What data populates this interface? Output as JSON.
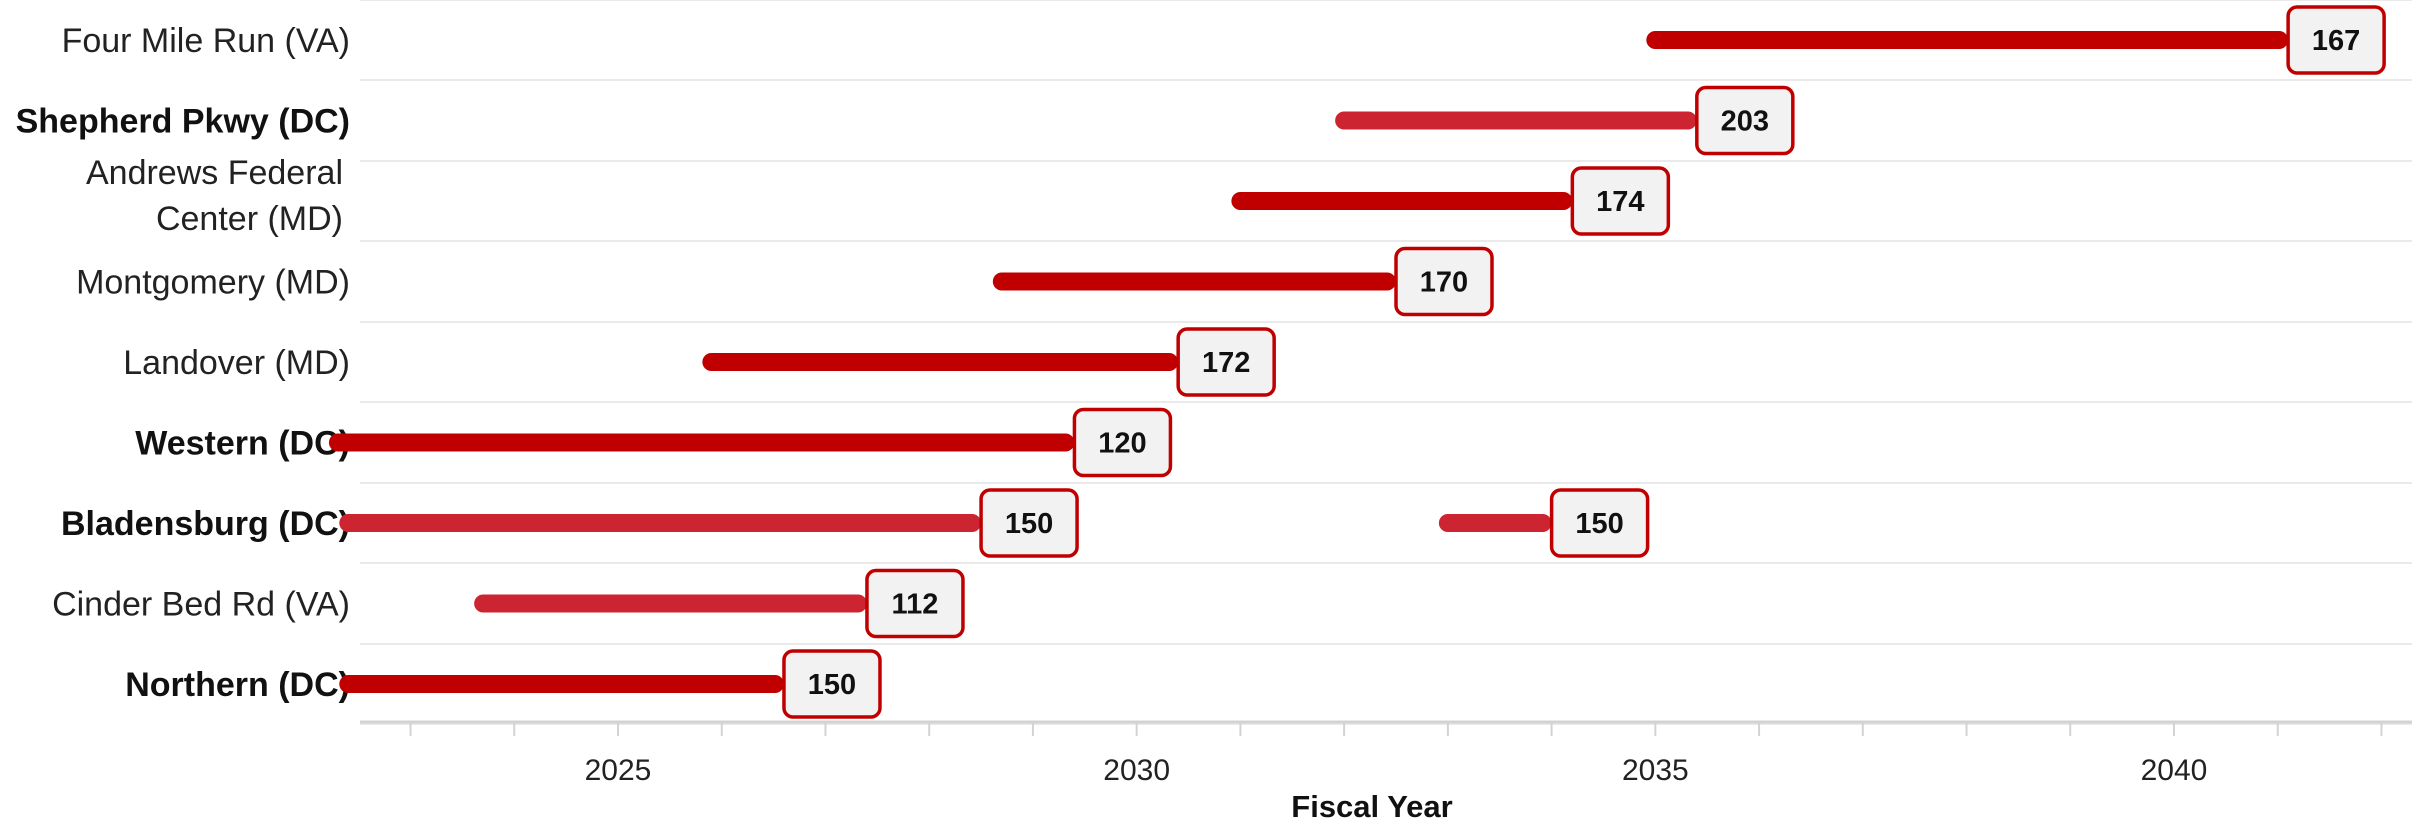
{
  "chart_data": {
    "type": "range-bar",
    "xlabel": "Fiscal Year",
    "xlim": [
      2022.2,
      2042.3
    ],
    "x_ticks": [
      2025,
      2030,
      2035,
      2040
    ],
    "grid": true,
    "colors": {
      "dark": "#c00000",
      "light": "#cc2431",
      "box_fill": "#f2f2f2",
      "box_border": "#c00000"
    },
    "rows": [
      {
        "label": "Four Mile Run (VA)",
        "bold": false,
        "segments": [
          {
            "start": 2035.0,
            "end": 2041.1,
            "value": "167",
            "shade": "dark"
          }
        ]
      },
      {
        "label": "Shepherd Pkwy (DC)",
        "bold": true,
        "segments": [
          {
            "start": 2032.0,
            "end": 2035.4,
            "value": "203",
            "shade": "light"
          }
        ]
      },
      {
        "label": "Andrews Federal Center (MD)",
        "label_lines": [
          "Andrews Federal",
          "Center (MD)"
        ],
        "bold": false,
        "segments": [
          {
            "start": 2031.0,
            "end": 2034.2,
            "value": "174",
            "shade": "dark"
          }
        ]
      },
      {
        "label": "Montgomery (MD)",
        "bold": false,
        "segments": [
          {
            "start": 2028.7,
            "end": 2032.5,
            "value": "170",
            "shade": "dark"
          }
        ]
      },
      {
        "label": "Landover (MD)",
        "bold": false,
        "segments": [
          {
            "start": 2025.9,
            "end": 2030.4,
            "value": "172",
            "shade": "dark"
          }
        ]
      },
      {
        "label": "Western (DC)",
        "bold": true,
        "segments": [
          {
            "start": 2022.3,
            "end": 2029.4,
            "value": "120",
            "shade": "dark"
          }
        ]
      },
      {
        "label": "Bladensburg (DC)",
        "bold": true,
        "segments": [
          {
            "start": 2022.4,
            "end": 2028.5,
            "value": "150",
            "shade": "light"
          },
          {
            "start": 2033.0,
            "end": 2034.0,
            "value": "150",
            "shade": "light"
          }
        ]
      },
      {
        "label": "Cinder Bed Rd (VA)",
        "bold": false,
        "segments": [
          {
            "start": 2023.7,
            "end": 2027.4,
            "value": "112",
            "shade": "light"
          }
        ]
      },
      {
        "label": "Northern (DC)",
        "bold": true,
        "segments": [
          {
            "start": 2022.4,
            "end": 2026.6,
            "value": "150",
            "shade": "dark"
          }
        ]
      }
    ]
  }
}
